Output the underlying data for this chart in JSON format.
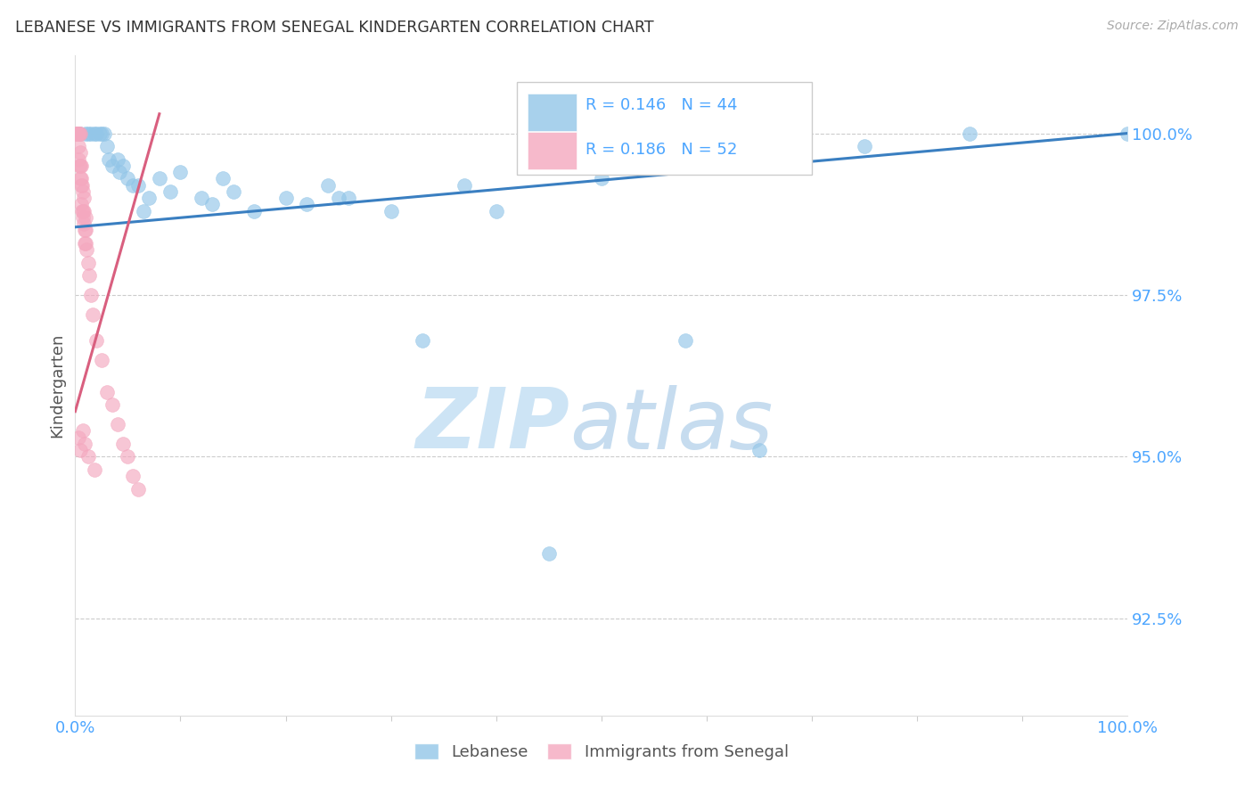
{
  "title": "LEBANESE VS IMMIGRANTS FROM SENEGAL KINDERGARTEN CORRELATION CHART",
  "source": "Source: ZipAtlas.com",
  "ylabel": "Kindergarten",
  "y_ticks": [
    92.5,
    95.0,
    97.5,
    100.0
  ],
  "y_tick_labels": [
    "92.5%",
    "95.0%",
    "97.5%",
    "100.0%"
  ],
  "x_min": 0.0,
  "x_max": 100.0,
  "y_min": 91.0,
  "y_max": 101.2,
  "blue_R": "0.146",
  "blue_N": "44",
  "pink_R": "0.186",
  "pink_N": "52",
  "blue_color": "#93c6e8",
  "pink_color": "#f4a8bf",
  "blue_line_color": "#3a7fc1",
  "pink_line_color": "#d95f7f",
  "blue_label": "Lebanese",
  "pink_label": "Immigrants from Senegal",
  "title_color": "#333333",
  "axis_color": "#4da6ff",
  "source_color": "#aaaaaa",
  "grid_color": "#cccccc",
  "legend_text_blue": "#4da6ff",
  "legend_text_dark": "#222222",
  "blue_trend_x": [
    0.0,
    100.0
  ],
  "blue_trend_y": [
    98.55,
    100.0
  ],
  "pink_trend_x": [
    0.0,
    8.0
  ],
  "pink_trend_y": [
    95.7,
    100.3
  ],
  "blue_x": [
    0.5,
    1.0,
    1.2,
    1.5,
    1.8,
    2.0,
    2.3,
    2.5,
    2.8,
    3.0,
    3.5,
    4.0,
    4.5,
    5.0,
    5.5,
    6.0,
    7.0,
    8.0,
    9.0,
    10.0,
    12.0,
    13.0,
    14.0,
    15.0,
    17.0,
    20.0,
    22.0,
    24.0,
    26.0,
    30.0,
    33.0,
    37.0,
    40.0,
    50.0,
    58.0,
    65.0,
    75.0,
    85.0,
    100.0,
    3.2,
    4.2,
    6.5,
    25.0,
    45.0
  ],
  "blue_y": [
    100.0,
    100.0,
    100.0,
    100.0,
    100.0,
    100.0,
    100.0,
    100.0,
    100.0,
    99.8,
    99.5,
    99.6,
    99.5,
    99.3,
    99.2,
    99.2,
    99.0,
    99.3,
    99.1,
    99.4,
    99.0,
    98.9,
    99.3,
    99.1,
    98.8,
    99.0,
    98.9,
    99.2,
    99.0,
    98.8,
    96.8,
    99.2,
    98.8,
    99.3,
    96.8,
    95.1,
    99.8,
    100.0,
    100.0,
    99.6,
    99.4,
    98.8,
    99.0,
    93.5
  ],
  "pink_x": [
    0.1,
    0.15,
    0.2,
    0.25,
    0.25,
    0.3,
    0.3,
    0.35,
    0.35,
    0.4,
    0.4,
    0.45,
    0.5,
    0.5,
    0.5,
    0.55,
    0.55,
    0.6,
    0.6,
    0.65,
    0.65,
    0.7,
    0.7,
    0.75,
    0.8,
    0.8,
    0.85,
    0.9,
    0.9,
    0.95,
    1.0,
    1.0,
    1.1,
    1.2,
    1.3,
    1.5,
    1.7,
    2.0,
    2.5,
    3.0,
    3.5,
    4.0,
    4.5,
    5.0,
    5.5,
    6.0,
    0.3,
    0.5,
    0.7,
    0.9,
    1.2,
    1.8
  ],
  "pink_y": [
    100.0,
    100.0,
    100.0,
    100.0,
    100.0,
    100.0,
    99.8,
    100.0,
    99.6,
    100.0,
    99.5,
    99.5,
    100.0,
    99.7,
    99.3,
    99.5,
    99.2,
    99.3,
    98.9,
    99.2,
    98.8,
    99.1,
    98.7,
    98.8,
    99.0,
    98.6,
    98.8,
    98.5,
    98.3,
    98.5,
    98.7,
    98.3,
    98.2,
    98.0,
    97.8,
    97.5,
    97.2,
    96.8,
    96.5,
    96.0,
    95.8,
    95.5,
    95.2,
    95.0,
    94.7,
    94.5,
    95.3,
    95.1,
    95.4,
    95.2,
    95.0,
    94.8
  ]
}
